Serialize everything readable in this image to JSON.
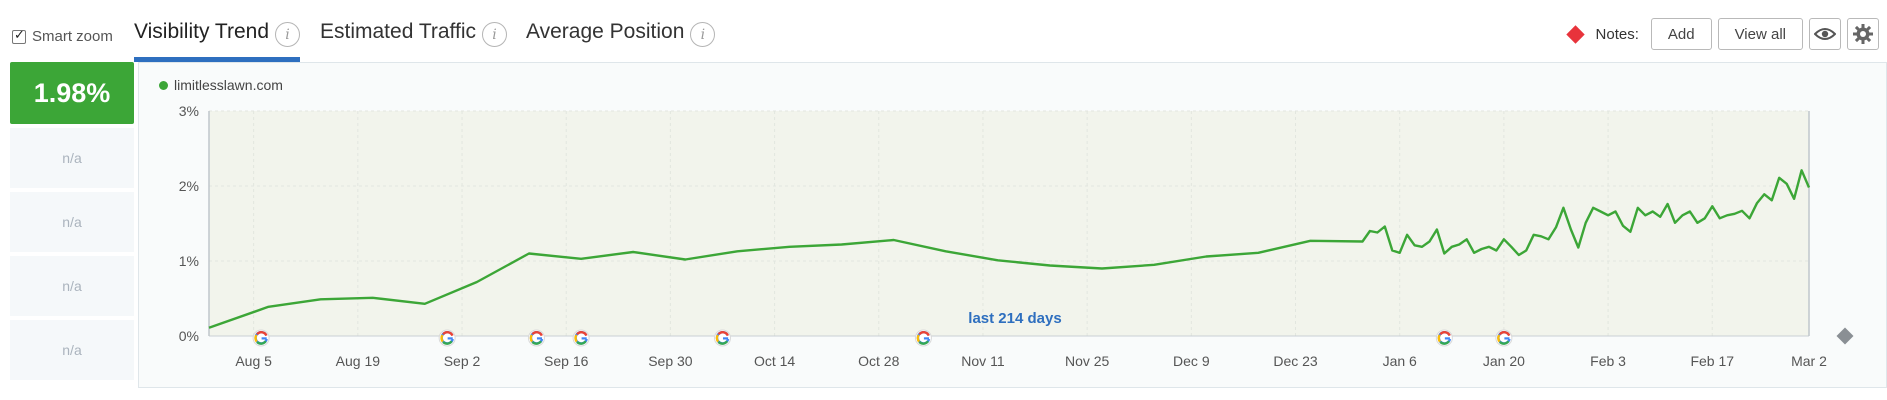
{
  "smart_zoom": {
    "label": "Smart zoom",
    "checked": true
  },
  "tabs": [
    {
      "label": "Visibility Trend",
      "active": true
    },
    {
      "label": "Estimated Traffic",
      "active": false
    },
    {
      "label": "Average Position",
      "active": false
    }
  ],
  "notes": {
    "label": "Notes:",
    "add_label": "Add",
    "view_all_label": "View all"
  },
  "sidebar": {
    "value": "1.98%",
    "na_items": [
      "n/a",
      "n/a",
      "n/a",
      "n/a"
    ]
  },
  "legend": {
    "domain": "limitlesslawn.com"
  },
  "period_label": "last 214 days",
  "colors": {
    "line": "#3ca637",
    "accent_tab": "#2e6fbf",
    "note_marker": "#e8333b",
    "period_text": "#2e6fbf"
  },
  "icons": [
    "info-icon",
    "diamond-icon",
    "eye-icon",
    "gear-icon",
    "google-icon"
  ],
  "chart_data": {
    "type": "line",
    "title": "",
    "xlabel": "",
    "ylabel": "",
    "ylim": [
      0,
      3
    ],
    "yticks": [
      "0%",
      "1%",
      "2%",
      "3%"
    ],
    "grid": true,
    "x_tick_labels": [
      "Aug 5",
      "Aug 19",
      "Sep 2",
      "Sep 16",
      "Sep 30",
      "Oct 14",
      "Oct 28",
      "Nov 11",
      "Nov 25",
      "Dec 9",
      "Dec 23",
      "Jan 6",
      "Jan 20",
      "Feb 3",
      "Feb 17",
      "Mar 2"
    ],
    "series": [
      {
        "name": "limitlesslawn.com",
        "points": [
          [
            "Jul 30",
            0.11
          ],
          [
            "Aug 7",
            0.39
          ],
          [
            "Aug 14",
            0.49
          ],
          [
            "Aug 21",
            0.51
          ],
          [
            "Aug 28",
            0.43
          ],
          [
            "Sep 4",
            0.72
          ],
          [
            "Sep 11",
            1.1
          ],
          [
            "Sep 18",
            1.03
          ],
          [
            "Sep 25",
            1.12
          ],
          [
            "Oct 2",
            1.02
          ],
          [
            "Oct 9",
            1.13
          ],
          [
            "Oct 16",
            1.19
          ],
          [
            "Oct 23",
            1.22
          ],
          [
            "Oct 30",
            1.28
          ],
          [
            "Nov 6",
            1.13
          ],
          [
            "Nov 13",
            1.01
          ],
          [
            "Nov 20",
            0.94
          ],
          [
            "Nov 27",
            0.9
          ],
          [
            "Dec 4",
            0.95
          ],
          [
            "Dec 11",
            1.06
          ],
          [
            "Dec 18",
            1.11
          ],
          [
            "Dec 25",
            1.27
          ],
          [
            "Jan 1",
            1.26
          ],
          [
            "Jan 2",
            1.4
          ],
          [
            "Jan 3",
            1.38
          ],
          [
            "Jan 4",
            1.46
          ],
          [
            "Jan 5",
            1.14
          ],
          [
            "Jan 6",
            1.11
          ],
          [
            "Jan 7",
            1.35
          ],
          [
            "Jan 8",
            1.21
          ],
          [
            "Jan 9",
            1.19
          ],
          [
            "Jan 10",
            1.26
          ],
          [
            "Jan 11",
            1.42
          ],
          [
            "Jan 12",
            1.1
          ],
          [
            "Jan 13",
            1.19
          ],
          [
            "Jan 14",
            1.22
          ],
          [
            "Jan 15",
            1.29
          ],
          [
            "Jan 16",
            1.11
          ],
          [
            "Jan 17",
            1.16
          ],
          [
            "Jan 18",
            1.19
          ],
          [
            "Jan 19",
            1.14
          ],
          [
            "Jan 20",
            1.29
          ],
          [
            "Jan 21",
            1.19
          ],
          [
            "Jan 22",
            1.08
          ],
          [
            "Jan 23",
            1.14
          ],
          [
            "Jan 24",
            1.35
          ],
          [
            "Jan 25",
            1.33
          ],
          [
            "Jan 26",
            1.29
          ],
          [
            "Jan 27",
            1.45
          ],
          [
            "Jan 28",
            1.71
          ],
          [
            "Jan 29",
            1.42
          ],
          [
            "Jan 30",
            1.18
          ],
          [
            "Jan 31",
            1.51
          ],
          [
            "Feb 1",
            1.71
          ],
          [
            "Feb 2",
            1.66
          ],
          [
            "Feb 3",
            1.61
          ],
          [
            "Feb 4",
            1.66
          ],
          [
            "Feb 5",
            1.47
          ],
          [
            "Feb 6",
            1.39
          ],
          [
            "Feb 7",
            1.71
          ],
          [
            "Feb 8",
            1.61
          ],
          [
            "Feb 9",
            1.66
          ],
          [
            "Feb 10",
            1.59
          ],
          [
            "Feb 11",
            1.76
          ],
          [
            "Feb 12",
            1.51
          ],
          [
            "Feb 13",
            1.61
          ],
          [
            "Feb 14",
            1.66
          ],
          [
            "Feb 15",
            1.51
          ],
          [
            "Feb 16",
            1.57
          ],
          [
            "Feb 17",
            1.73
          ],
          [
            "Feb 18",
            1.57
          ],
          [
            "Feb 19",
            1.61
          ],
          [
            "Feb 20",
            1.63
          ],
          [
            "Feb 21",
            1.67
          ],
          [
            "Feb 22",
            1.57
          ],
          [
            "Feb 23",
            1.77
          ],
          [
            "Feb 24",
            1.89
          ],
          [
            "Feb 25",
            1.81
          ],
          [
            "Feb 26",
            2.11
          ],
          [
            "Feb 27",
            2.03
          ],
          [
            "Feb 28",
            1.83
          ],
          [
            "Mar 1",
            2.21
          ],
          [
            "Mar 2",
            1.98
          ]
        ]
      }
    ],
    "google_update_dates": [
      "Aug 6",
      "Aug 31",
      "Sep 12",
      "Sep 18",
      "Oct 7",
      "Nov 3",
      "Jan 12",
      "Jan 20"
    ]
  }
}
